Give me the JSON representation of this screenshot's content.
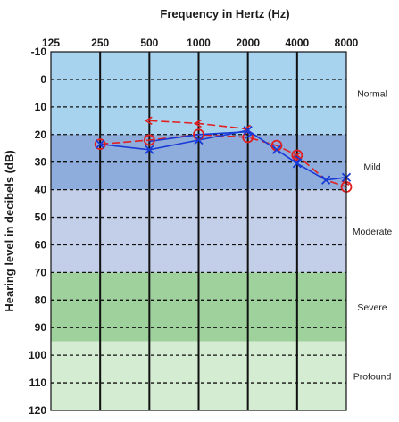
{
  "chart_data": {
    "type": "scatter",
    "title": "Frequency in Hertz (Hz)",
    "xlabel": "Frequency in Hertz (Hz)",
    "ylabel": "Hearing level in decibels (dB)",
    "x_ticks": [
      "125",
      "250",
      "500",
      "1000",
      "2000",
      "4000",
      "8000"
    ],
    "y_ticks": [
      "-10",
      "0",
      "10",
      "20",
      "30",
      "40",
      "50",
      "60",
      "70",
      "80",
      "90",
      "100",
      "110",
      "120"
    ],
    "ylim": [
      -10,
      120
    ],
    "y_inverted": true,
    "x_scale": "log2",
    "bands": [
      {
        "label": "Normal",
        "from": -10,
        "to": 20,
        "color": "#a8d3ef"
      },
      {
        "label": "Mild",
        "from": 20,
        "to": 40,
        "color": "#8eaddc"
      },
      {
        "label": "Moderate",
        "from": 40,
        "to": 70,
        "color": "#c3cfe9"
      },
      {
        "label": "Severe",
        "from": 70,
        "to": 95,
        "color": "#9fd19d"
      },
      {
        "label": "Profound",
        "from": 95,
        "to": 120,
        "color": "#d4ecd1"
      }
    ],
    "series": [
      {
        "marker_color": "#e02020",
        "points": [
          {
            "x": 250,
            "y": 23.5,
            "marker": "circle"
          },
          {
            "x": 500,
            "y": 22,
            "marker": "circle"
          },
          {
            "x": 1000,
            "y": 20,
            "marker": "circle"
          },
          {
            "x": 2000,
            "y": 21,
            "marker": "circle"
          },
          {
            "x": 3000,
            "y": 24,
            "marker": "circle"
          },
          {
            "x": 4000,
            "y": 27.5,
            "marker": "circle"
          },
          {
            "x": 8000,
            "y": 39,
            "marker": "circle"
          },
          {
            "x": 500,
            "y": 15,
            "marker": "bracket-left"
          },
          {
            "x": 1000,
            "y": 16,
            "marker": "bracket-left"
          },
          {
            "x": 2000,
            "y": 18,
            "marker": "bracket-left"
          },
          {
            "x": 4000,
            "y": 28,
            "marker": "bracket-left"
          },
          {
            "x": 8000,
            "y": 37,
            "marker": "bracket-left"
          }
        ]
      },
      {
        "marker_color": "#1a3ad6",
        "points": [
          {
            "x": 250,
            "y": 23.5,
            "marker": "x"
          },
          {
            "x": 500,
            "y": 25.5,
            "marker": "x"
          },
          {
            "x": 1000,
            "y": 22,
            "marker": "x"
          },
          {
            "x": 2000,
            "y": 18.5,
            "marker": "x"
          },
          {
            "x": 3000,
            "y": 25.5,
            "marker": "x"
          },
          {
            "x": 4000,
            "y": 30.5,
            "marker": "x"
          },
          {
            "x": 6000,
            "y": 36.5,
            "marker": "x"
          },
          {
            "x": 8000,
            "y": 35.5,
            "marker": "x"
          },
          {
            "x": 2000,
            "y": 20,
            "marker": "bracket-right"
          },
          {
            "x": 4000,
            "y": 29,
            "marker": "bracket-right"
          }
        ]
      }
    ],
    "connecting_lines": [
      {
        "color": "#e02020",
        "style": "dashed",
        "points": [
          [
            250,
            23.5
          ],
          [
            500,
            22
          ],
          [
            1000,
            20
          ],
          [
            2000,
            21
          ],
          [
            3000,
            24
          ],
          [
            4000,
            27.5
          ],
          [
            6000,
            36.5
          ],
          [
            8000,
            39
          ]
        ]
      },
      {
        "color": "#e02020",
        "style": "dashed",
        "points": [
          [
            500,
            15
          ],
          [
            1000,
            16
          ],
          [
            2000,
            18
          ]
        ]
      },
      {
        "color": "#1a3ad6",
        "style": "solid",
        "points": [
          [
            250,
            23.5
          ],
          [
            500,
            25.5
          ],
          [
            1000,
            22
          ],
          [
            2000,
            18.5
          ],
          [
            3000,
            25.5
          ],
          [
            4000,
            30.5
          ],
          [
            6000,
            36.5
          ],
          [
            8000,
            35.5
          ]
        ]
      },
      {
        "color": "#1a3ad6",
        "style": "solid",
        "points": [
          [
            500,
            22.5
          ],
          [
            1000,
            20
          ],
          [
            2000,
            19
          ]
        ]
      }
    ]
  }
}
